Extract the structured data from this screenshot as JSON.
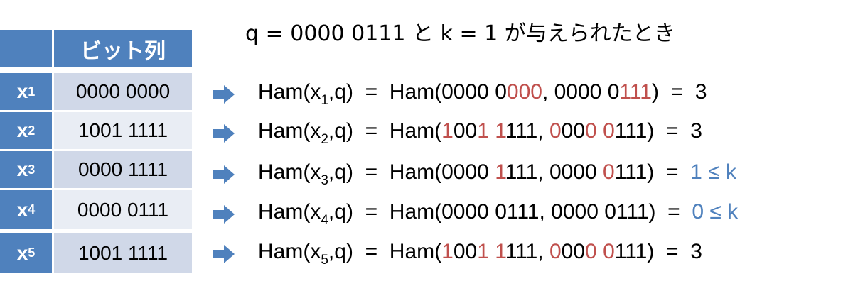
{
  "title": "q = 0000 0111 と k = 1 が与えられたとき",
  "colors": {
    "header": "#4F81BD",
    "row_odd": "#D0D8E8",
    "row_even": "#E9EDF4",
    "diff": "#C0504D",
    "le_k": "#4F81BD"
  },
  "table": {
    "header": [
      "",
      "ビット列"
    ],
    "rows": [
      {
        "name": "x",
        "sub": "1",
        "bits": "0000 0000"
      },
      {
        "name": "x",
        "sub": "2",
        "bits": "1001 1111"
      },
      {
        "name": "x",
        "sub": "3",
        "bits": "0000 1111"
      },
      {
        "name": "x",
        "sub": "4",
        "bits": "0000 0111"
      },
      {
        "name": "x",
        "sub": "5",
        "bits": "1001 1111"
      }
    ]
  },
  "arrow_icon": "right-arrow-icon",
  "equations": [
    [
      {
        "t": "Ham(x",
        "c": "n"
      },
      {
        "t": "1",
        "c": "sub"
      },
      {
        "t": ",q)  =  Ham(0000 0",
        "c": "n"
      },
      {
        "t": "000",
        "c": "r"
      },
      {
        "t": ", 0000 0",
        "c": "n"
      },
      {
        "t": "111",
        "c": "r"
      },
      {
        "t": ")  =  3",
        "c": "n"
      }
    ],
    [
      {
        "t": "Ham(x",
        "c": "n"
      },
      {
        "t": "2",
        "c": "sub"
      },
      {
        "t": ",q)  =  Ham(",
        "c": "n"
      },
      {
        "t": "1",
        "c": "r"
      },
      {
        "t": "00",
        "c": "n"
      },
      {
        "t": "1",
        "c": "r"
      },
      {
        "t": " ",
        "c": "n"
      },
      {
        "t": "1",
        "c": "r"
      },
      {
        "t": "111, ",
        "c": "n"
      },
      {
        "t": "0",
        "c": "r"
      },
      {
        "t": "00",
        "c": "n"
      },
      {
        "t": "0",
        "c": "r"
      },
      {
        "t": " ",
        "c": "n"
      },
      {
        "t": "0",
        "c": "r"
      },
      {
        "t": "111)  =  3",
        "c": "n"
      }
    ],
    [
      {
        "t": "Ham(x",
        "c": "n"
      },
      {
        "t": "3",
        "c": "sub"
      },
      {
        "t": ",q)  =  Ham(0000 ",
        "c": "n"
      },
      {
        "t": "1",
        "c": "r"
      },
      {
        "t": "111, 0000 ",
        "c": "n"
      },
      {
        "t": "0",
        "c": "r"
      },
      {
        "t": "111)  =  ",
        "c": "n"
      },
      {
        "t": "1 ≤ k",
        "c": "b"
      }
    ],
    [
      {
        "t": "Ham(x",
        "c": "n"
      },
      {
        "t": "4",
        "c": "sub"
      },
      {
        "t": ",q)  =  Ham(0000 0111, 0000 0111)  =  ",
        "c": "n"
      },
      {
        "t": "0 ≤ k",
        "c": "b"
      }
    ],
    [
      {
        "t": "Ham(x",
        "c": "n"
      },
      {
        "t": "5",
        "c": "sub"
      },
      {
        "t": ",q)  =  Ham(",
        "c": "n"
      },
      {
        "t": "1",
        "c": "r"
      },
      {
        "t": "00",
        "c": "n"
      },
      {
        "t": "1",
        "c": "r"
      },
      {
        "t": " ",
        "c": "n"
      },
      {
        "t": "1",
        "c": "r"
      },
      {
        "t": "111, ",
        "c": "n"
      },
      {
        "t": "0",
        "c": "r"
      },
      {
        "t": "00",
        "c": "n"
      },
      {
        "t": "0",
        "c": "r"
      },
      {
        "t": " ",
        "c": "n"
      },
      {
        "t": "0",
        "c": "r"
      },
      {
        "t": "111)  =  3",
        "c": "n"
      }
    ]
  ]
}
